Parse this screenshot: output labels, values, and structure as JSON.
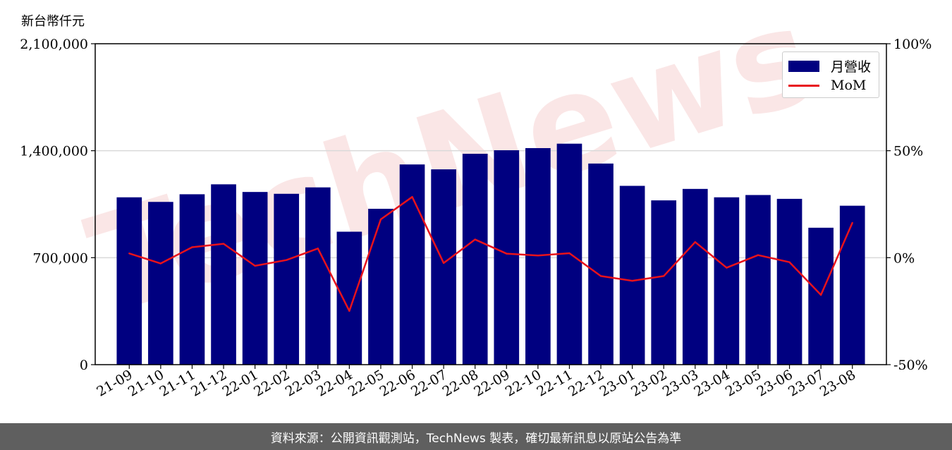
{
  "unit_label": "新台幣仟元",
  "footer": "資料來源：公開資訊觀測站，TechNews 製表，確切最新訊息以原站公告為準",
  "watermark": "TechNews",
  "colors": {
    "bar": "#000080",
    "line": "#e8121b",
    "grid": "#d9d9d9",
    "footer_bg": "#5f5f5f"
  },
  "legend": {
    "position": "top-right",
    "items": [
      "月營收",
      "MoM"
    ]
  },
  "chart_data": {
    "type": "bar+line",
    "title": "",
    "xlabel": "",
    "ylabel": "新台幣仟元",
    "categories": [
      "21-09",
      "21-10",
      "21-11",
      "21-12",
      "22-01",
      "22-02",
      "22-03",
      "22-04",
      "22-05",
      "22-06",
      "22-07",
      "22-08",
      "22-09",
      "22-10",
      "22-11",
      "22-12",
      "23-01",
      "23-02",
      "23-03",
      "23-04",
      "23-05",
      "23-06",
      "23-07",
      "23-08"
    ],
    "series": [
      {
        "name": "月營收",
        "type": "bar",
        "axis": "left",
        "values": [
          1095000,
          1065000,
          1115000,
          1180000,
          1130000,
          1118000,
          1160000,
          870000,
          1020000,
          1310000,
          1278000,
          1380000,
          1403000,
          1417000,
          1446000,
          1316000,
          1170000,
          1075000,
          1150000,
          1095000,
          1110000,
          1085000,
          896000,
          1040000
        ]
      },
      {
        "name": "MoM",
        "type": "line",
        "axis": "right",
        "unit": "%",
        "values": [
          2.0,
          -2.7,
          4.9,
          6.5,
          -3.8,
          -1.1,
          4.3,
          -24.9,
          17.9,
          28.4,
          -2.5,
          8.5,
          1.9,
          1.0,
          2.1,
          -8.6,
          -10.8,
          -8.6,
          7.3,
          -4.7,
          1.2,
          -2.1,
          -17.4,
          16.3
        ]
      }
    ],
    "y_left": {
      "ylim": [
        0,
        2100000
      ],
      "ticks": [
        0,
        700000,
        1400000,
        2100000
      ],
      "tick_labels": [
        "0",
        "700,000",
        "1,400,000",
        "2,100,000"
      ]
    },
    "y_right": {
      "ylim": [
        -50,
        100
      ],
      "ticks": [
        -50,
        0,
        50,
        100
      ],
      "tick_labels": [
        "-50%",
        "0%",
        "50%",
        "100%"
      ]
    },
    "grid": "horizontal"
  }
}
